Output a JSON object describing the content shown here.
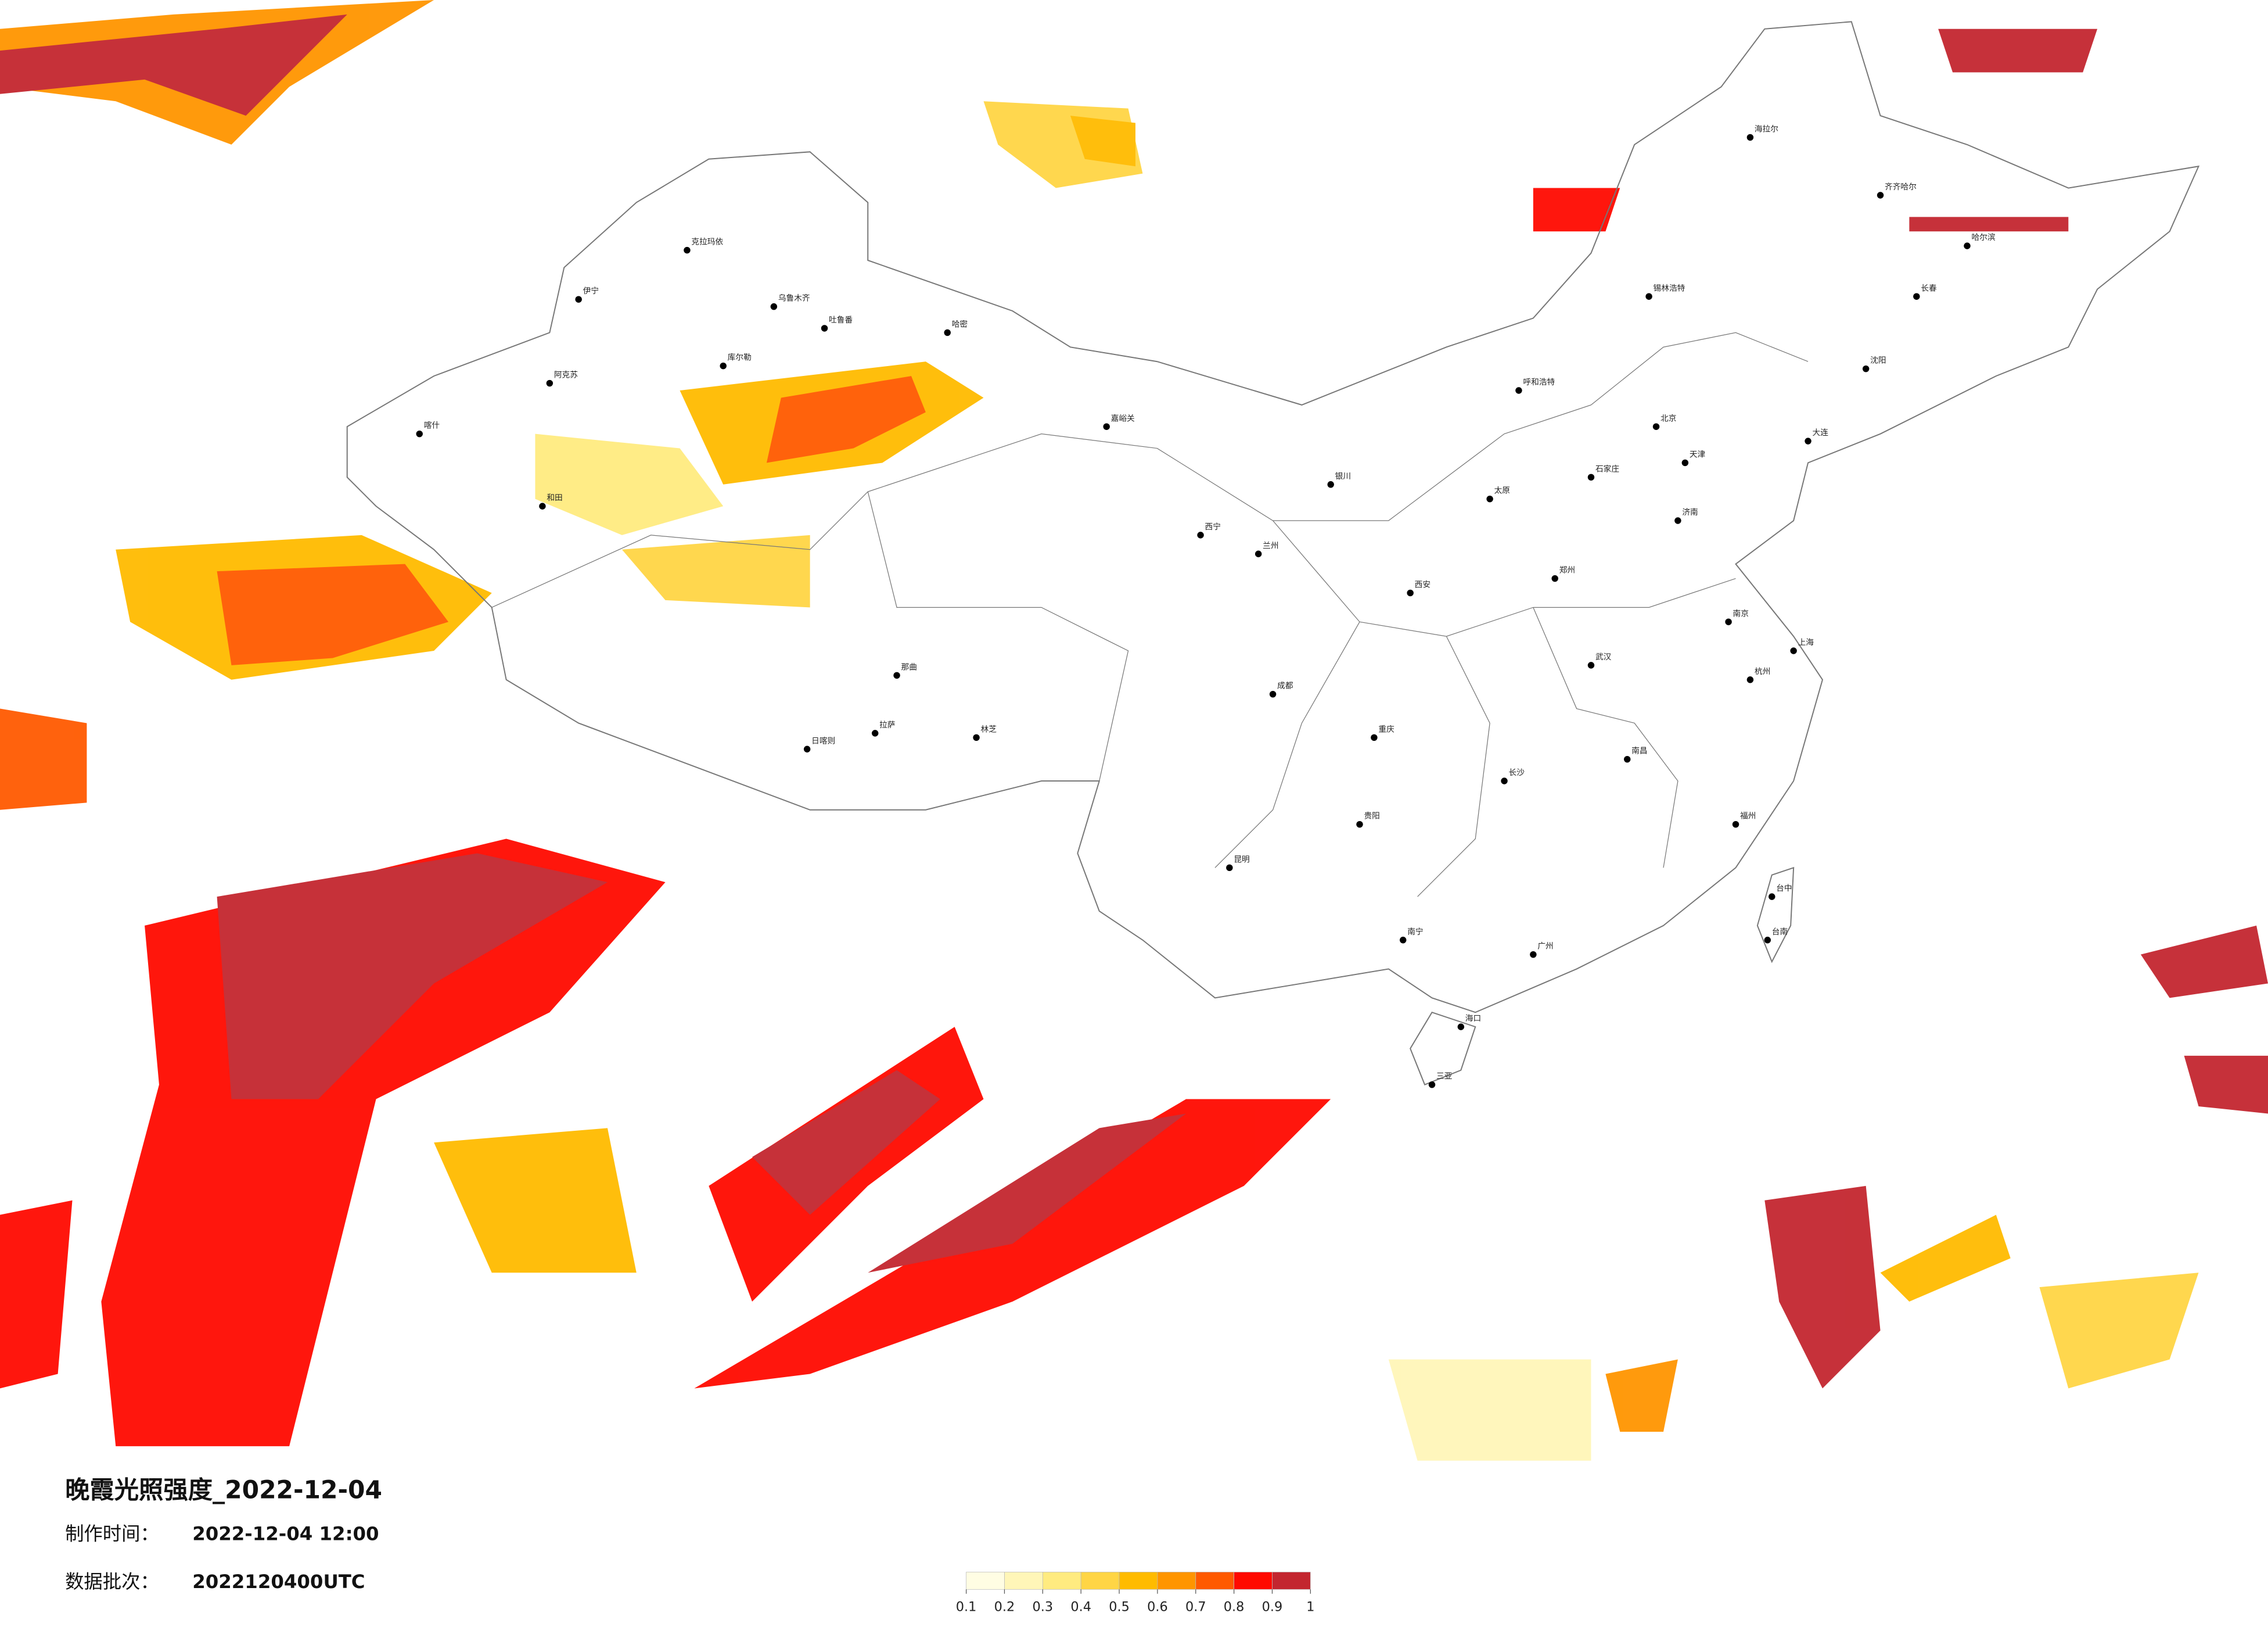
{
  "title": "晚霞光照强度_2022-12-04",
  "production_time": {
    "label": "制作时间：",
    "value": "2022-12-04 12:00"
  },
  "batch": {
    "label": "数据批次：",
    "value": "2022120400UTC"
  },
  "legend": {
    "ticks": [
      0.1,
      0.2,
      0.3,
      0.4,
      0.5,
      0.6,
      0.7,
      0.8,
      0.9,
      1
    ],
    "colors": [
      "#fffde3",
      "#fff6b8",
      "#ffeb80",
      "#ffd545",
      "#ffbb00",
      "#ff9500",
      "#ff5a00",
      "#ff0a00",
      "#c3262f"
    ]
  },
  "cities": [
    "克拉玛依",
    "乌鲁木齐",
    "伊宁",
    "吐鲁番",
    "哈密",
    "库尔勒",
    "阿克苏",
    "喀什",
    "和田",
    "嘉峪关",
    "西宁",
    "兰州",
    "银川",
    "那曲",
    "拉萨",
    "日喀则",
    "林芝",
    "呼和浩特",
    "北京",
    "天津",
    "石家庄",
    "太原",
    "济南",
    "郑州",
    "西安",
    "成都",
    "重庆",
    "武汉",
    "南京",
    "上海",
    "杭州",
    "长沙",
    "南昌",
    "福州",
    "贵阳",
    "昆明",
    "南宁",
    "广州",
    "海口",
    "三亚",
    "台中",
    "台南",
    "哈尔滨",
    "长春",
    "沈阳",
    "大连",
    "海拉尔",
    "齐齐哈尔",
    "锡林浩特"
  ]
}
